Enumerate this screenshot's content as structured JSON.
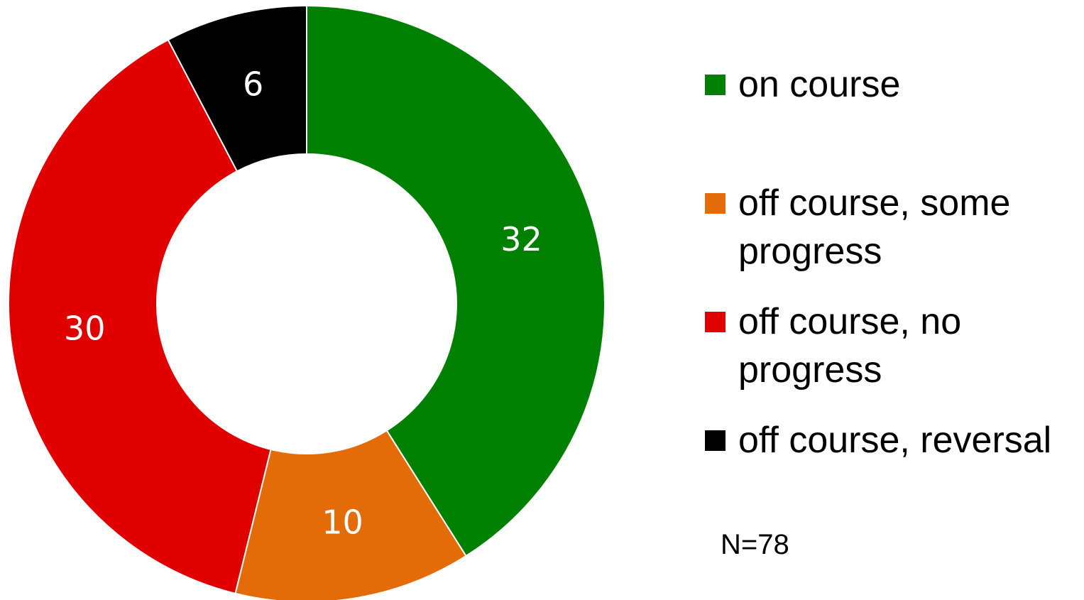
{
  "chart_data": {
    "type": "donut",
    "categories": [
      "on course",
      "off course, some progress",
      "off course, no progress",
      "off course, reversal"
    ],
    "values": [
      32,
      10,
      30,
      6
    ],
    "colors": [
      "#008000",
      "#e36c09",
      "#e00000",
      "#000000"
    ],
    "legend": "right",
    "annotation": "N=78"
  }
}
